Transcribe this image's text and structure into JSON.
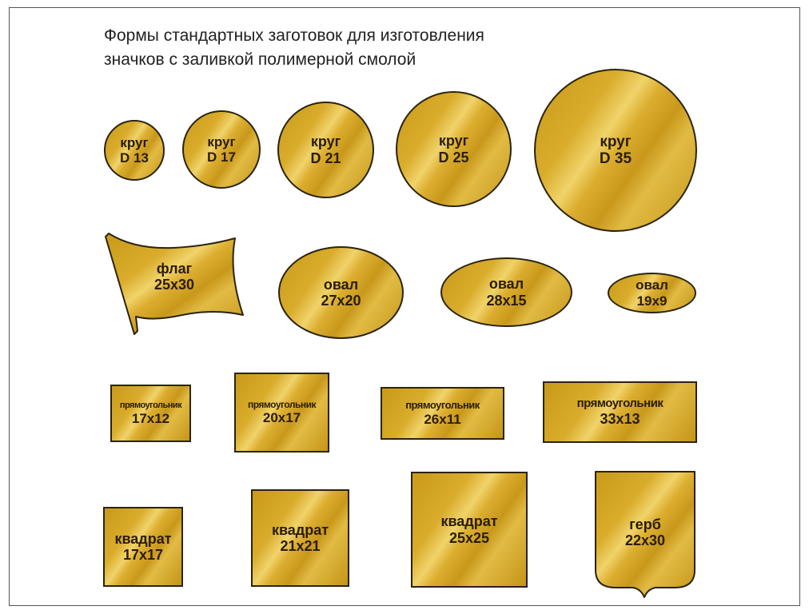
{
  "title": {
    "line1": "Формы стандартных заготовок для изготовления",
    "line2": "значков с заливкой полимерной смолой"
  },
  "colors": {
    "gold": "#d4a52a",
    "outline": "#2a2410",
    "text": "#2a1d05"
  },
  "circles": [
    {
      "name": "круг",
      "size": "D 13"
    },
    {
      "name": "круг",
      "size": "D 17"
    },
    {
      "name": "круг",
      "size": "D 21"
    },
    {
      "name": "круг",
      "size": "D 25"
    },
    {
      "name": "круг",
      "size": "D 35"
    }
  ],
  "flag": {
    "name": "флаг",
    "size": "25x30"
  },
  "ovals": [
    {
      "name": "овал",
      "size": "27x20"
    },
    {
      "name": "овал",
      "size": "28x15"
    },
    {
      "name": "овал",
      "size": "19x9"
    }
  ],
  "rectangles": [
    {
      "name": "прямоугольник",
      "size": "17x12"
    },
    {
      "name": "прямоугольник",
      "size": "20x17"
    },
    {
      "name": "прямоугольник",
      "size": "26x11"
    },
    {
      "name": "прямоугольник",
      "size": "33x13"
    }
  ],
  "squares": [
    {
      "name": "квадрат",
      "size": "17x17"
    },
    {
      "name": "квадрат",
      "size": "21x21"
    },
    {
      "name": "квадрат",
      "size": "25x25"
    }
  ],
  "coat_of_arms": {
    "name": "герб",
    "size": "22x30"
  }
}
